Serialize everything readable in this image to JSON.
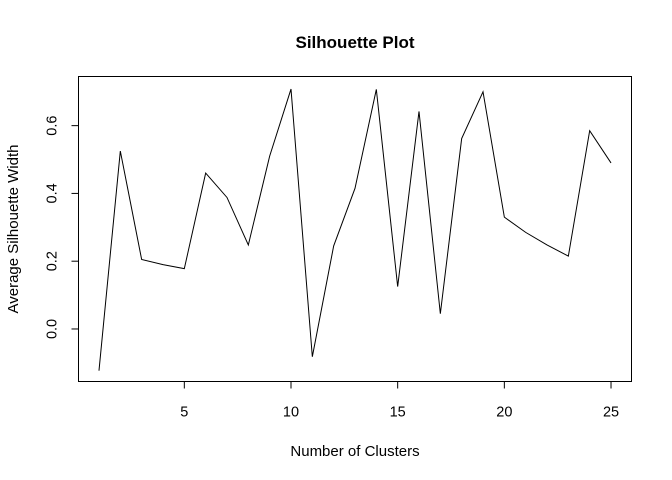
{
  "chart_data": {
    "type": "line",
    "title": "Silhouette Plot",
    "xlabel": "Number of Clusters",
    "ylabel": "Average Silhouette Width",
    "xlim": [
      0.04,
      25.96
    ],
    "ylim": [
      -0.155,
      0.745
    ],
    "x_ticks": [
      5,
      10,
      15,
      20,
      25
    ],
    "x_tick_labels": [
      "5",
      "10",
      "15",
      "20",
      "25"
    ],
    "y_ticks": [
      0.0,
      0.2,
      0.4,
      0.6
    ],
    "y_tick_labels": [
      "0.0",
      "0.2",
      "0.4",
      "0.6"
    ],
    "grid": false,
    "series": [
      {
        "x": [
          1,
          2,
          3,
          4,
          5,
          6,
          7,
          8,
          9,
          10,
          11,
          12,
          13,
          14,
          15,
          16,
          17,
          18,
          19,
          20,
          21,
          22,
          23,
          24,
          25
        ],
        "values": [
          -0.123,
          0.525,
          0.205,
          0.19,
          0.178,
          0.46,
          0.388,
          0.248,
          0.51,
          0.708,
          -0.082,
          0.245,
          0.415,
          0.707,
          0.125,
          0.642,
          0.045,
          0.562,
          0.7,
          0.33,
          0.285,
          0.248,
          0.215,
          0.585,
          0.49
        ],
        "color": "#000000"
      }
    ]
  }
}
